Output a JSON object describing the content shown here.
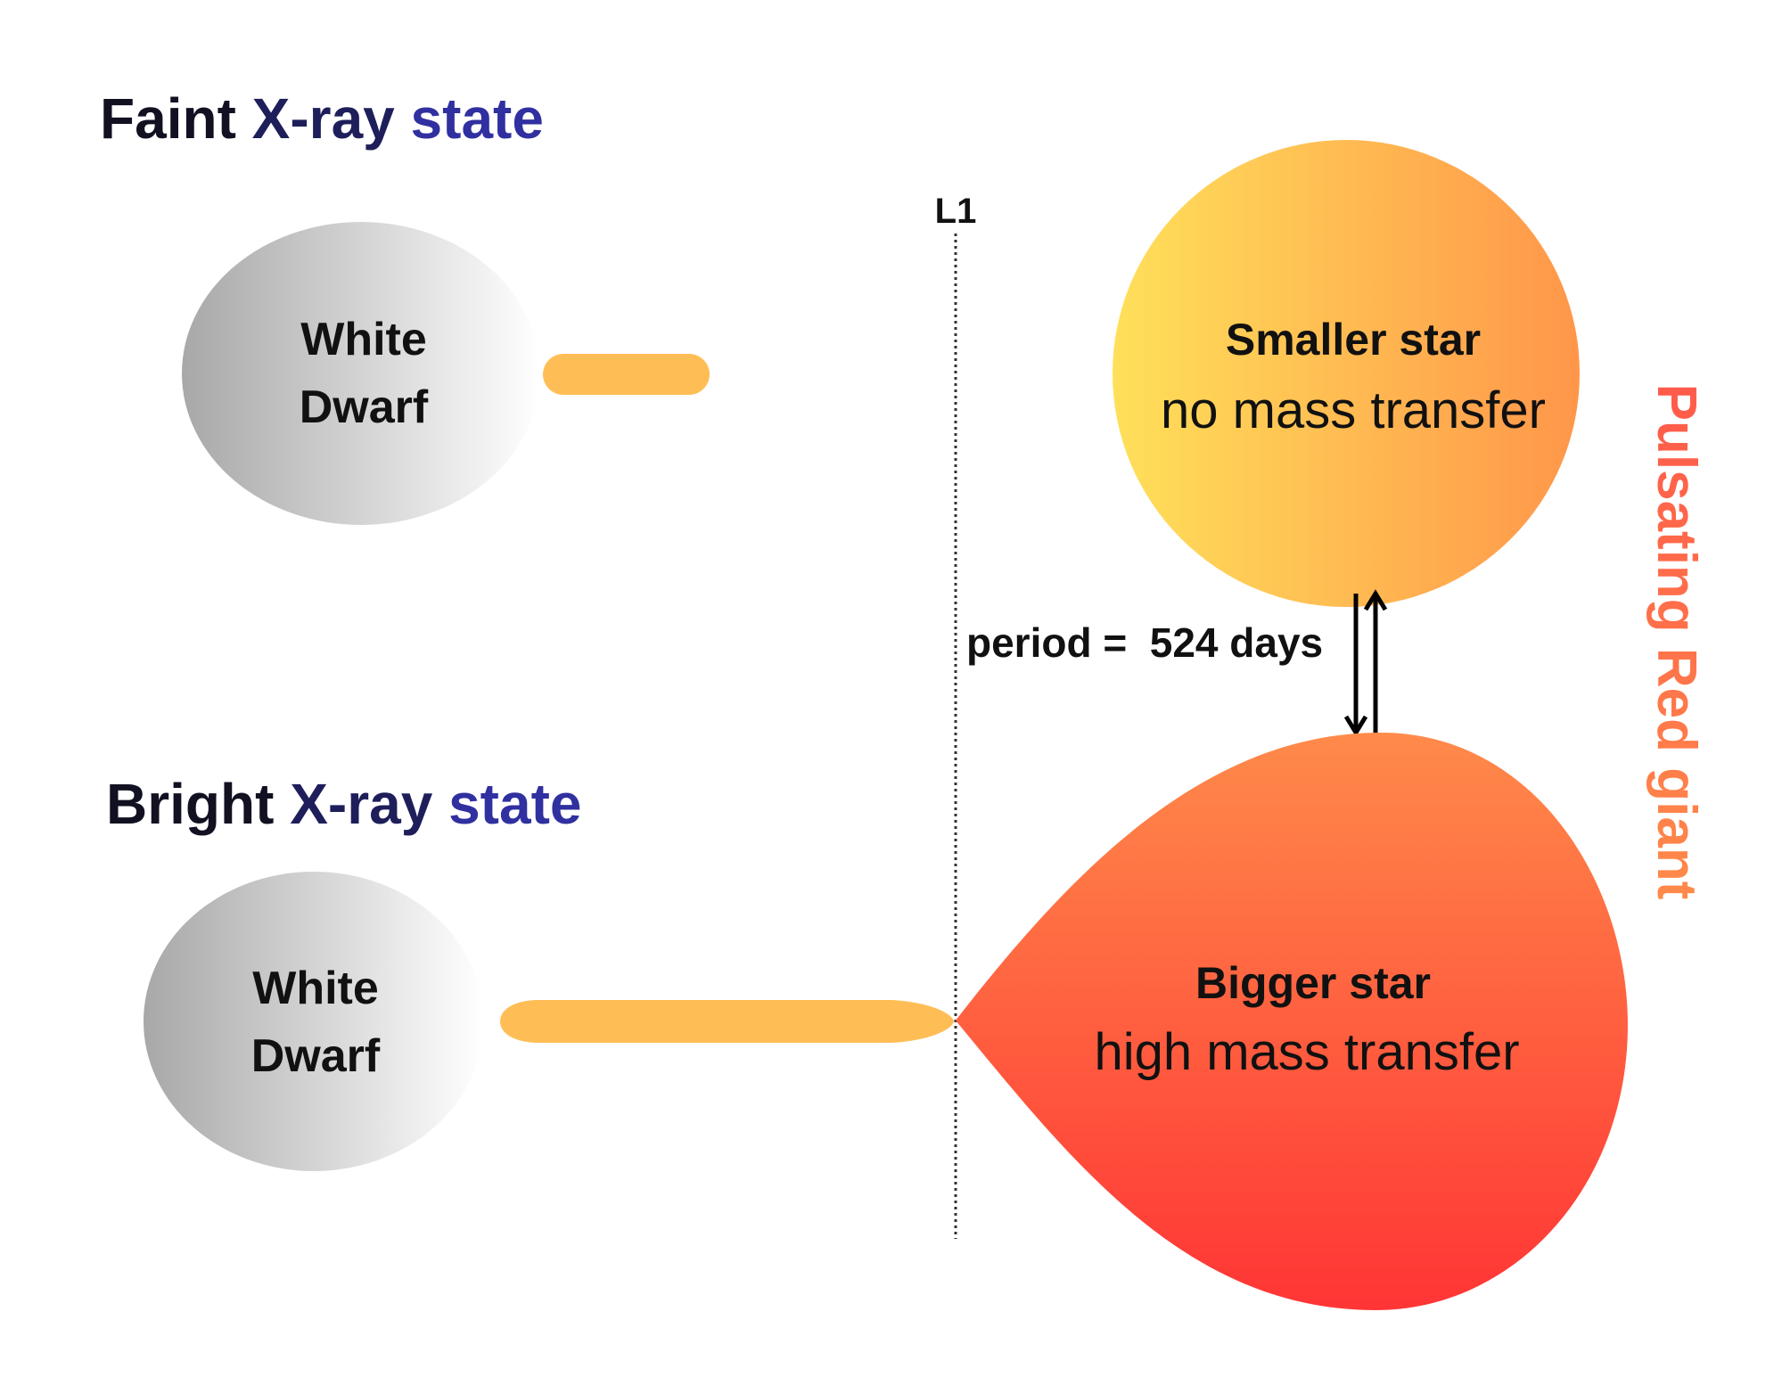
{
  "faint_state": {
    "title": [
      "Faint",
      "X-ray",
      "state"
    ],
    "white_dwarf": [
      "White",
      "Dwarf"
    ],
    "star": {
      "name": "Smaller star",
      "note": "no mass transfer"
    }
  },
  "bright_state": {
    "title": [
      "Bright",
      "X-ray",
      "state"
    ],
    "white_dwarf": [
      "White",
      "Dwarf"
    ],
    "star": {
      "name": "Bigger star",
      "note": "high mass transfer"
    }
  },
  "l1_label": "L1",
  "period": "period =  524 days",
  "side_label": "Pulsating Red giant"
}
